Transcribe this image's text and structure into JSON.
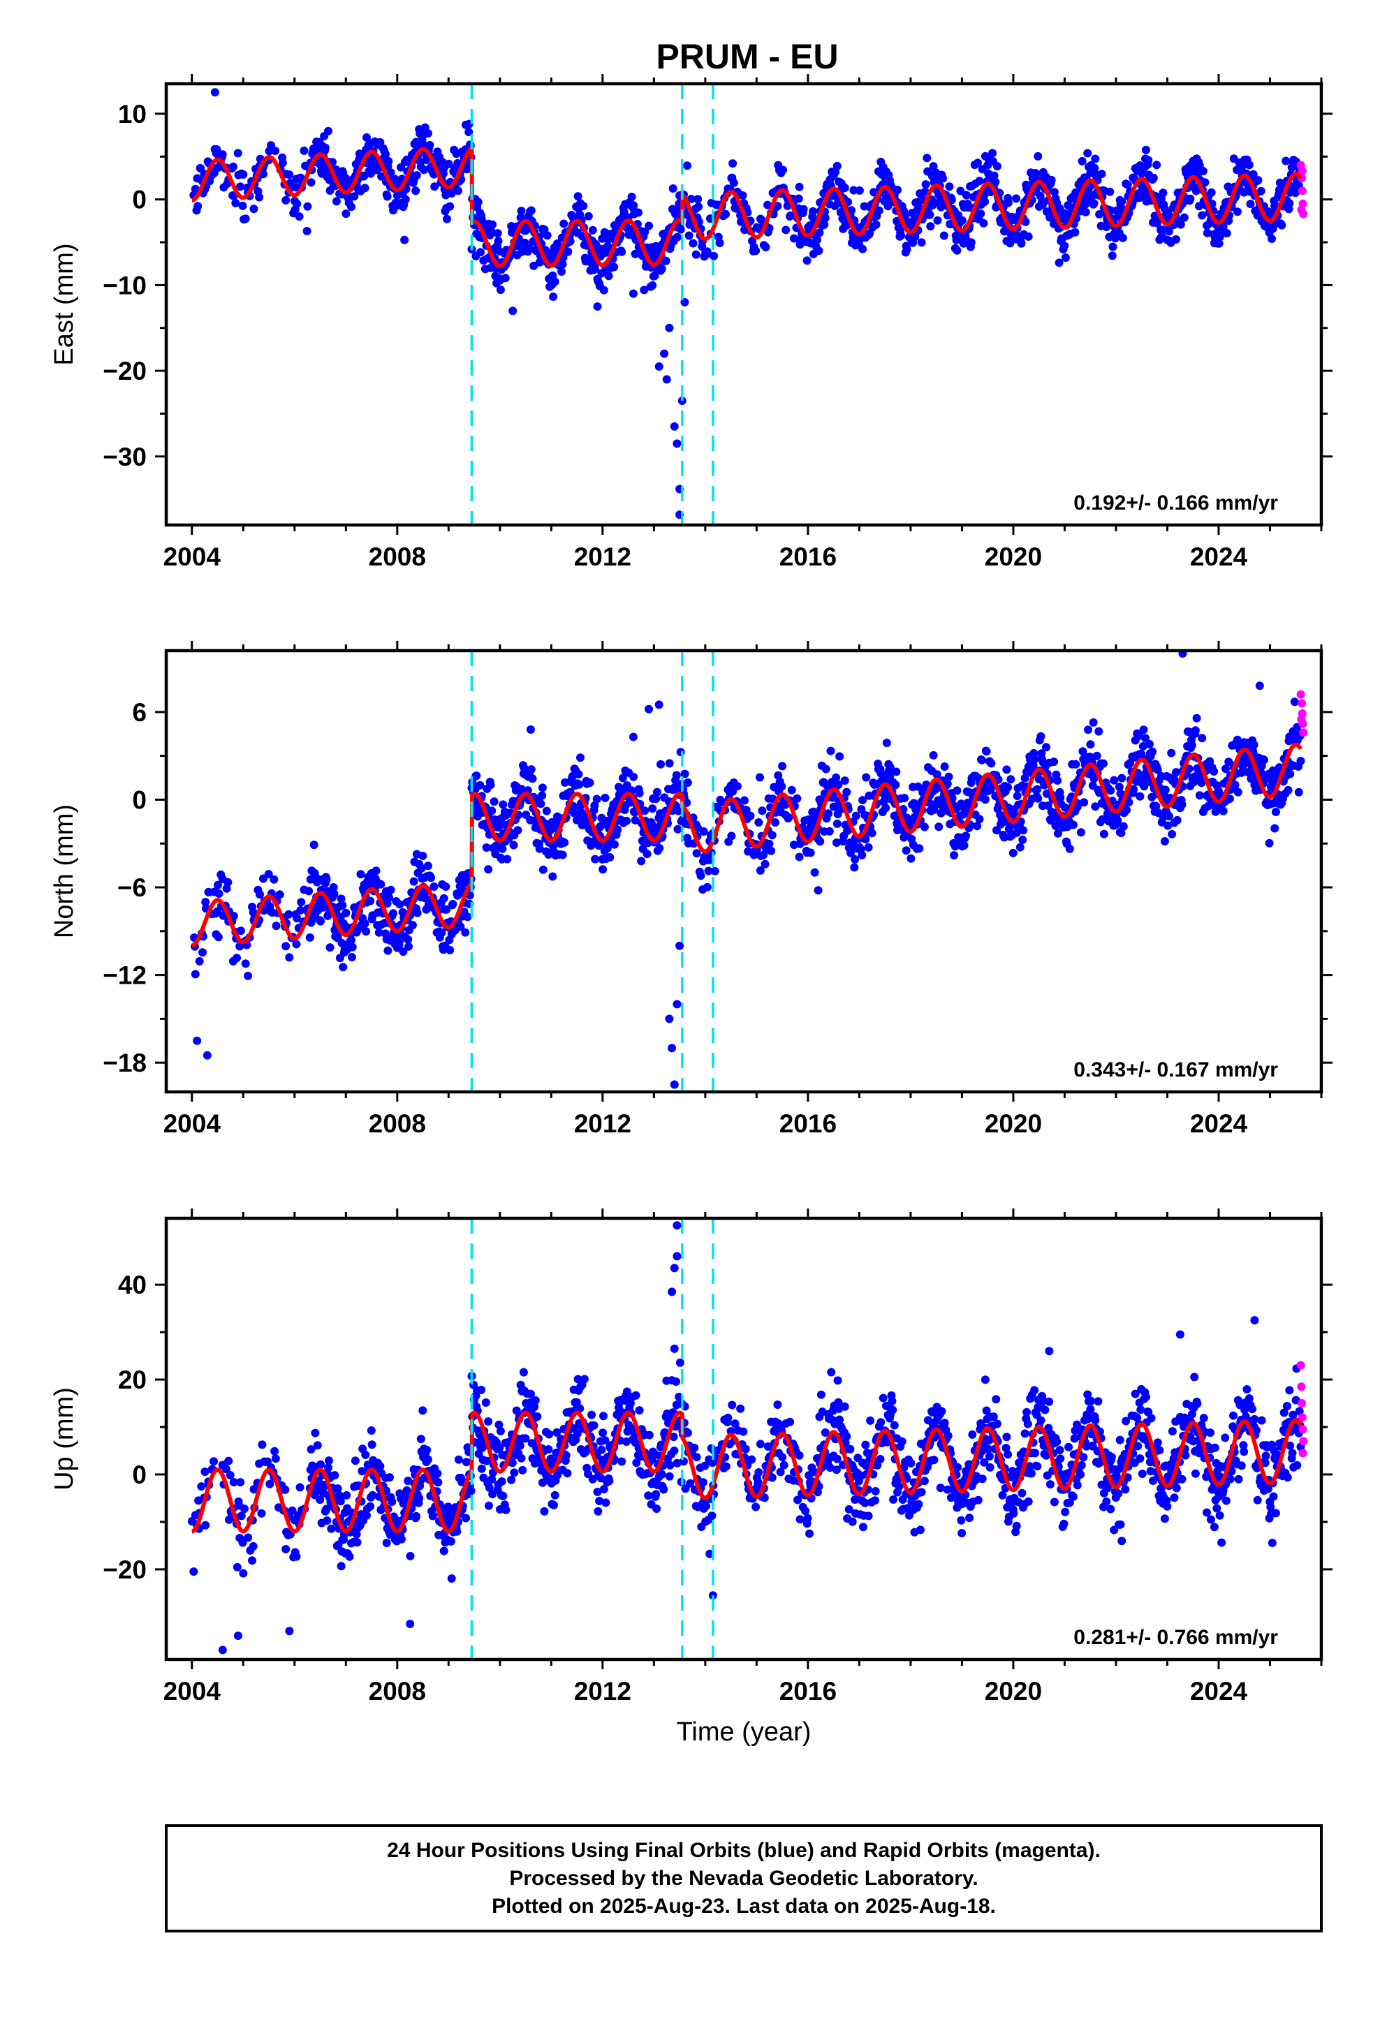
{
  "title": "PRUM - EU",
  "colors": {
    "final_orbits": "#0000ff",
    "rapid_orbits": "#ff00ff",
    "model_fit": "#ff0000",
    "offsets": "#00e5ee",
    "frame": "#000000"
  },
  "footer": {
    "line1": "24 Hour Positions Using Final Orbits (blue) and Rapid Orbits (magenta).",
    "line2": "Processed by the Nevada Geodetic Laboratory.",
    "line3": "Plotted on 2025-Aug-23. Last data on 2025-Aug-18."
  },
  "chart_data": [
    {
      "type": "scatter",
      "component": "East",
      "ylabel": "East (mm)",
      "xlabel": "",
      "xlim": [
        2003.5,
        2026.0
      ],
      "ylim": [
        -38,
        13.5
      ],
      "xticks": [
        2004,
        2008,
        2012,
        2016,
        2020,
        2024
      ],
      "yticks": [
        10,
        0,
        -10,
        -20,
        -30
      ],
      "rate_text": "0.192+/- 0.166 mm/yr",
      "offset_epochs": [
        2009.45,
        2013.55,
        2014.15
      ],
      "model": {
        "segments": [
          {
            "start": 2004.0,
            "end": 2009.45,
            "y0": 2.2,
            "slope": 0.3,
            "amp": 2.3
          },
          {
            "start": 2009.45,
            "end": 2013.55,
            "y0": -5.2,
            "slope": 0.05,
            "amp": 2.6
          },
          {
            "start": 2013.55,
            "end": 2025.6,
            "y0": -2.0,
            "slope": 0.19,
            "amp": 2.7
          }
        ]
      },
      "outliers": [
        [
          2004.45,
          12.5
        ],
        [
          2009.4,
          8.8
        ],
        [
          2010.25,
          -13.0
        ],
        [
          2011.9,
          -12.5
        ],
        [
          2012.6,
          -11.0
        ],
        [
          2013.1,
          -19.5
        ],
        [
          2013.2,
          -18.0
        ],
        [
          2013.25,
          -21.0
        ],
        [
          2013.3,
          -15.0
        ],
        [
          2013.4,
          -26.5
        ],
        [
          2013.45,
          -28.5
        ],
        [
          2013.5,
          -33.8
        ],
        [
          2013.5,
          -36.8
        ],
        [
          2013.55,
          -23.5
        ],
        [
          2013.6,
          -12.0
        ]
      ],
      "rapid_points": [
        [
          2025.6,
          4.0
        ],
        [
          2025.62,
          2.5
        ],
        [
          2025.63,
          1.0
        ],
        [
          2025.64,
          -0.5
        ],
        [
          2025.65,
          -1.7
        ],
        [
          2025.63,
          3.3
        ],
        [
          2025.61,
          -1.2
        ]
      ]
    },
    {
      "type": "scatter",
      "component": "North",
      "ylabel": "North (mm)",
      "xlabel": "",
      "xlim": [
        2003.5,
        2026.0
      ],
      "ylim": [
        -20.0,
        10.2
      ],
      "xticks": [
        2004,
        2008,
        2012,
        2016,
        2020,
        2024
      ],
      "yticks": [
        6,
        0,
        -6,
        -12,
        -18
      ],
      "rate_text": "0.343+/- 0.167 mm/yr",
      "offset_epochs": [
        2009.45,
        2013.55,
        2014.15
      ],
      "model": {
        "segments": [
          {
            "start": 2004.0,
            "end": 2009.45,
            "y0": -8.5,
            "slope": 0.25,
            "amp": 1.5
          },
          {
            "start": 2009.45,
            "end": 2013.55,
            "y0": -1.2,
            "slope": 0.0,
            "amp": 1.6
          },
          {
            "start": 2013.55,
            "end": 2025.6,
            "y0": -2.0,
            "slope": 0.34,
            "amp": 1.7
          }
        ]
      },
      "outliers": [
        [
          2004.1,
          -16.5
        ],
        [
          2004.3,
          -17.5
        ],
        [
          2010.6,
          4.8
        ],
        [
          2012.6,
          4.3
        ],
        [
          2012.9,
          6.2
        ],
        [
          2013.1,
          6.5
        ],
        [
          2013.3,
          -15.0
        ],
        [
          2013.35,
          -17.0
        ],
        [
          2013.4,
          -19.5
        ],
        [
          2013.45,
          -14.0
        ],
        [
          2013.5,
          -10.0
        ],
        [
          2016.2,
          -6.2
        ],
        [
          2023.3,
          10.0
        ],
        [
          2024.8,
          7.8
        ]
      ],
      "rapid_points": [
        [
          2025.6,
          7.2
        ],
        [
          2025.62,
          6.6
        ],
        [
          2025.63,
          5.9
        ],
        [
          2025.64,
          5.2
        ],
        [
          2025.65,
          4.6
        ],
        [
          2025.61,
          5.5
        ]
      ]
    },
    {
      "type": "scatter",
      "component": "Up",
      "ylabel": "Up (mm)",
      "xlabel": "Time (year)",
      "xlim": [
        2003.5,
        2026.0
      ],
      "ylim": [
        -39,
        54
      ],
      "xticks": [
        2004,
        2008,
        2012,
        2016,
        2020,
        2024
      ],
      "yticks": [
        40,
        20,
        0,
        -20
      ],
      "rate_text": "0.281+/- 0.766 mm/yr",
      "offset_epochs": [
        2009.45,
        2013.55,
        2014.15
      ],
      "model": {
        "segments": [
          {
            "start": 2004.0,
            "end": 2009.45,
            "y0": -5.5,
            "slope": 0.0,
            "amp": 6.5
          },
          {
            "start": 2009.45,
            "end": 2013.55,
            "y0": 6.8,
            "slope": 0.0,
            "amp": 6.2
          },
          {
            "start": 2013.55,
            "end": 2025.6,
            "y0": 1.5,
            "slope": 0.28,
            "amp": 6.6
          }
        ]
      },
      "outliers": [
        [
          2004.6,
          -37.0
        ],
        [
          2004.9,
          -34.0
        ],
        [
          2005.9,
          -33.0
        ],
        [
          2008.25,
          -31.5
        ],
        [
          2013.45,
          52.5
        ],
        [
          2013.45,
          46.0
        ],
        [
          2013.4,
          43.5
        ],
        [
          2013.35,
          38.5
        ],
        [
          2013.4,
          26.5
        ],
        [
          2014.15,
          -25.5
        ],
        [
          2020.7,
          26.0
        ],
        [
          2023.25,
          29.5
        ],
        [
          2024.7,
          32.5
        ]
      ],
      "rapid_points": [
        [
          2025.6,
          23.0
        ],
        [
          2025.61,
          18.5
        ],
        [
          2025.62,
          15.0
        ],
        [
          2025.63,
          12.0
        ],
        [
          2025.64,
          9.5
        ],
        [
          2025.65,
          7.0
        ],
        [
          2025.64,
          4.5
        ]
      ]
    }
  ]
}
